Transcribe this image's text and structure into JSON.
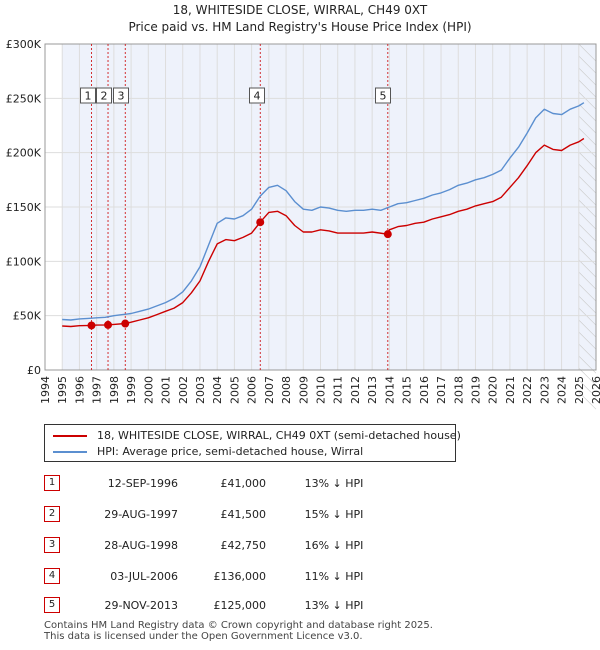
{
  "chart_data": {
    "type": "line",
    "title": "18, WHITESIDE CLOSE, WIRRAL, CH49 0XT",
    "subtitle": "Price paid vs. HM Land Registry's House Price Index (HPI)",
    "xlim": [
      1995,
      2026
    ],
    "ylim": [
      0,
      300000
    ],
    "x_ticks": [
      "1994",
      "1995",
      "1996",
      "1997",
      "1998",
      "1999",
      "2000",
      "2001",
      "2002",
      "2003",
      "2004",
      "2005",
      "2006",
      "2007",
      "2008",
      "2009",
      "2010",
      "2011",
      "2012",
      "2013",
      "2014",
      "2015",
      "2016",
      "2017",
      "2018",
      "2019",
      "2020",
      "2021",
      "2022",
      "2023",
      "2024",
      "2025",
      "2026"
    ],
    "y_ticks": [
      {
        "value": 0,
        "label": "£0"
      },
      {
        "value": 50000,
        "label": "£50K"
      },
      {
        "value": 100000,
        "label": "£100K"
      },
      {
        "value": 150000,
        "label": "£150K"
      },
      {
        "value": 200000,
        "label": "£200K"
      },
      {
        "value": 250000,
        "label": "£250K"
      },
      {
        "value": 300000,
        "label": "£300K"
      }
    ],
    "grid": true,
    "series": [
      {
        "name": "HPI: Average price, semi-detached house, Wirral",
        "color": "#5b8fd0",
        "x": [
          1995.0,
          1995.5,
          1996.0,
          1996.5,
          1997.0,
          1997.5,
          1998.0,
          1998.5,
          1999.0,
          1999.5,
          2000.0,
          2000.5,
          2001.0,
          2001.5,
          2002.0,
          2002.5,
          2003.0,
          2003.5,
          2004.0,
          2004.5,
          2005.0,
          2005.5,
          2006.0,
          2006.5,
          2007.0,
          2007.5,
          2008.0,
          2008.5,
          2009.0,
          2009.5,
          2010.0,
          2010.5,
          2011.0,
          2011.5,
          2012.0,
          2012.5,
          2013.0,
          2013.5,
          2014.0,
          2014.5,
          2015.0,
          2015.5,
          2016.0,
          2016.5,
          2017.0,
          2017.5,
          2018.0,
          2018.5,
          2019.0,
          2019.5,
          2020.0,
          2020.5,
          2021.0,
          2021.5,
          2022.0,
          2022.5,
          2023.0,
          2023.5,
          2024.0,
          2024.5,
          2025.0,
          2025.3
        ],
        "y": [
          46500,
          46000,
          47000,
          47500,
          48000,
          48500,
          50000,
          51000,
          52000,
          54000,
          56000,
          59000,
          62000,
          66000,
          72000,
          82000,
          95000,
          115000,
          135000,
          140000,
          139000,
          142000,
          148000,
          160000,
          168000,
          170000,
          165000,
          155000,
          148000,
          147000,
          150000,
          149000,
          147000,
          146000,
          147000,
          147000,
          148000,
          147000,
          150000,
          153000,
          154000,
          156000,
          158000,
          161000,
          163000,
          166000,
          170000,
          172000,
          175000,
          177000,
          180000,
          184000,
          195000,
          205000,
          218000,
          232000,
          240000,
          236000,
          235000,
          240000,
          243000,
          246000
        ]
      },
      {
        "name": "18, WHITESIDE CLOSE, WIRRAL, CH49 0XT (semi-detached house)",
        "color": "#cc0000",
        "x": [
          1995.0,
          1995.5,
          1996.0,
          1996.7,
          1997.0,
          1997.66,
          1998.0,
          1998.66,
          1999.0,
          1999.5,
          2000.0,
          2000.5,
          2001.0,
          2001.5,
          2002.0,
          2002.5,
          2003.0,
          2003.5,
          2004.0,
          2004.5,
          2005.0,
          2005.5,
          2006.0,
          2006.5,
          2007.0,
          2007.5,
          2008.0,
          2008.5,
          2009.0,
          2009.5,
          2010.0,
          2010.5,
          2011.0,
          2011.5,
          2012.0,
          2012.5,
          2013.0,
          2013.91,
          2014.0,
          2014.5,
          2015.0,
          2015.5,
          2016.0,
          2016.5,
          2017.0,
          2017.5,
          2018.0,
          2018.5,
          2019.0,
          2019.5,
          2020.0,
          2020.5,
          2021.0,
          2021.5,
          2022.0,
          2022.5,
          2023.0,
          2023.5,
          2024.0,
          2024.5,
          2025.0,
          2025.3
        ],
        "y": [
          40500,
          40000,
          40800,
          41000,
          41300,
          41500,
          42000,
          42750,
          44000,
          46000,
          48000,
          51000,
          54000,
          57000,
          62000,
          71000,
          82000,
          100000,
          116000,
          120000,
          119000,
          122000,
          126000,
          136000,
          145000,
          146000,
          142000,
          133000,
          127000,
          127000,
          129000,
          128000,
          126000,
          126000,
          126000,
          126000,
          127000,
          125000,
          129000,
          132000,
          133000,
          135000,
          136000,
          139000,
          141000,
          143000,
          146000,
          148000,
          151000,
          153000,
          155000,
          159000,
          168000,
          177000,
          188000,
          200000,
          207000,
          203000,
          202000,
          207000,
          210000,
          213000
        ]
      }
    ],
    "sales": [
      {
        "label": "1",
        "x": 1996.7,
        "y": 41000
      },
      {
        "label": "2",
        "x": 1997.66,
        "y": 41500
      },
      {
        "label": "3",
        "x": 1998.66,
        "y": 42750
      },
      {
        "label": "4",
        "x": 2006.5,
        "y": 136000
      },
      {
        "label": "5",
        "x": 2013.91,
        "y": 125000
      }
    ]
  },
  "legend": {
    "property": "18, WHITESIDE CLOSE, WIRRAL, CH49 0XT (semi-detached house)",
    "hpi": "HPI: Average price, semi-detached house, Wirral",
    "property_color": "#cc0000",
    "hpi_color": "#5b8fd0"
  },
  "transactions": [
    {
      "num": "1",
      "date": "12-SEP-1996",
      "price": "£41,000",
      "hpi": "13% ↓ HPI"
    },
    {
      "num": "2",
      "date": "29-AUG-1997",
      "price": "£41,500",
      "hpi": "15% ↓ HPI"
    },
    {
      "num": "3",
      "date": "28-AUG-1998",
      "price": "£42,750",
      "hpi": "16% ↓ HPI"
    },
    {
      "num": "4",
      "date": "03-JUL-2006",
      "price": "£136,000",
      "hpi": "11% ↓ HPI"
    },
    {
      "num": "5",
      "date": "29-NOV-2013",
      "price": "£125,000",
      "hpi": "13% ↓ HPI"
    }
  ],
  "footer": {
    "line1": "Contains HM Land Registry data © Crown copyright and database right 2025.",
    "line2": "This data is licensed under the Open Government Licence v3.0."
  }
}
